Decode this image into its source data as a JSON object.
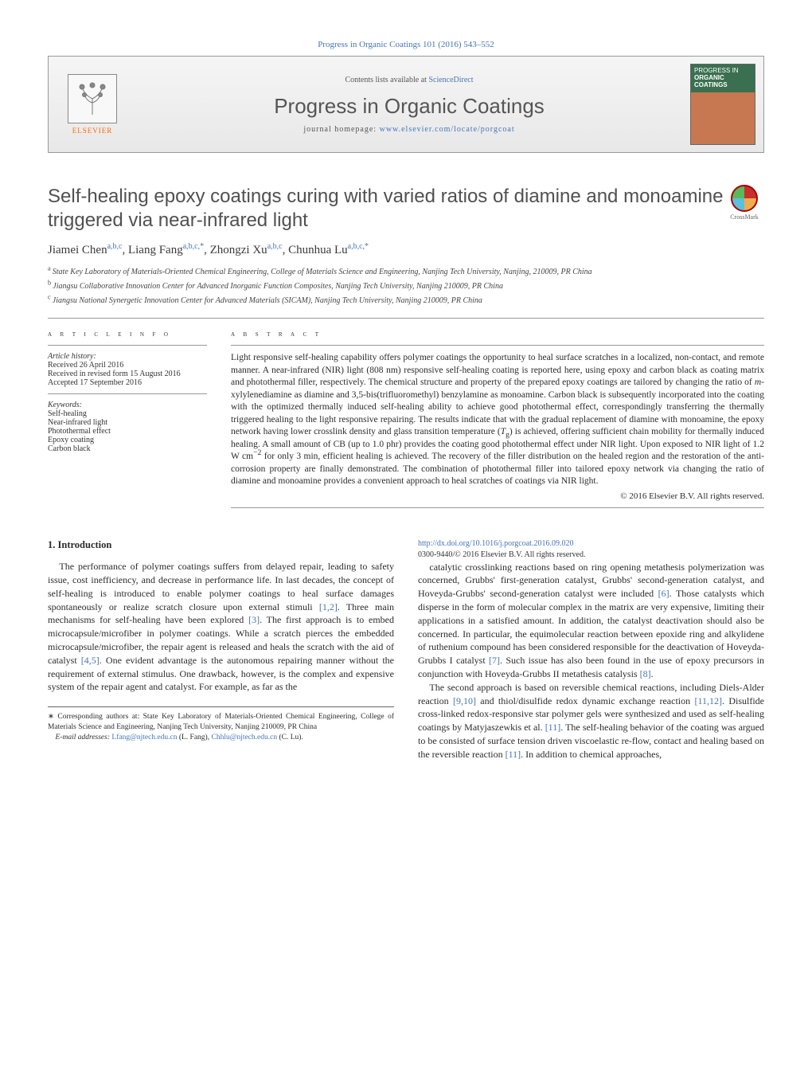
{
  "citation": "Progress in Organic Coatings 101 (2016) 543–552",
  "banner": {
    "contents_prefix": "Contents lists available at ",
    "contents_link": "ScienceDirect",
    "journal_title": "Progress in Organic Coatings",
    "homepage_prefix": "journal homepage: ",
    "homepage_url": "www.elsevier.com/locate/porgcoat",
    "publisher_name": "ELSEVIER",
    "cover_line1": "PROGRESS IN",
    "cover_line2": "ORGANIC",
    "cover_line3": "COATINGS"
  },
  "crossmark_label": "CrossMark",
  "title": "Self-healing epoxy coatings curing with varied ratios of diamine and monoamine triggered via near-infrared light",
  "authors_html": "Jiamei Chen<a,b,c>, Liang Fang<a,b,c,*>, Zhongzi Xu<a,b,c>, Chunhua Lu<a,b,c,*>",
  "authors": [
    {
      "name": "Jiamei Chen",
      "sup": "a,b,c"
    },
    {
      "name": "Liang Fang",
      "sup": "a,b,c,",
      "corr": "*"
    },
    {
      "name": "Zhongzi Xu",
      "sup": "a,b,c"
    },
    {
      "name": "Chunhua Lu",
      "sup": "a,b,c,",
      "corr": "*"
    }
  ],
  "affiliations": [
    {
      "sup": "a",
      "text": "State Key Laboratory of Materials-Oriented Chemical Engineering, College of Materials Science and Engineering, Nanjing Tech University, Nanjing, 210009, PR China"
    },
    {
      "sup": "b",
      "text": "Jiangsu Collaborative Innovation Center for Advanced Inorganic Function Composites, Nanjing Tech University, Nanjing 210009, PR China"
    },
    {
      "sup": "c",
      "text": "Jiangsu National Synergetic Innovation Center for Advanced Materials (SICAM), Nanjing Tech University, Nanjing 210009, PR China"
    }
  ],
  "info": {
    "heading": "a r t i c l e   i n f o",
    "history_label": "Article history:",
    "received": "Received 26 April 2016",
    "revised": "Received in revised form 15 August 2016",
    "accepted": "Accepted 17 September 2016",
    "keywords_label": "Keywords:",
    "keywords": [
      "Self-healing",
      "Near-infrared light",
      "Photothermal effect",
      "Epoxy coating",
      "Carbon black"
    ]
  },
  "abstract": {
    "heading": "a b s t r a c t",
    "text": "Light responsive self-healing capability offers polymer coatings the opportunity to heal surface scratches in a localized, non-contact, and remote manner. A near-infrared (NIR) light (808 nm) responsive self-healing coating is reported here, using epoxy and carbon black as coating matrix and photothermal filler, respectively. The chemical structure and property of the prepared epoxy coatings are tailored by changing the ratio of m-xylylenediamine as diamine and 3,5-bis(trifluoromethyl) benzylamine as monoamine. Carbon black is subsequently incorporated into the coating with the optimized thermally induced self-healing ability to achieve good photothermal effect, correspondingly transferring the thermally triggered healing to the light responsive repairing. The results indicate that with the gradual replacement of diamine with monoamine, the epoxy network having lower crosslink density and glass transition temperature (Tg) is achieved, offering sufficient chain mobility for thermally induced healing. A small amount of CB (up to 1.0 phr) provides the coating good photothermal effect under NIR light. Upon exposed to NIR light of 1.2 W cm⁻² for only 3 min, efficient healing is achieved. The recovery of the filler distribution on the healed region and the restoration of the anti-corrosion property are finally demonstrated. The combination of photothermal filler into tailored epoxy network via changing the ratio of diamine and monoamine provides a convenient approach to heal scratches of coatings via NIR light.",
    "copyright": "© 2016 Elsevier B.V. All rights reserved."
  },
  "intro": {
    "heading": "1.  Introduction",
    "p1": "The performance of polymer coatings suffers from delayed repair, leading to safety issue, cost inefficiency, and decrease in performance life. In last decades, the concept of self-healing is introduced to enable polymer coatings to heal surface damages spontaneously or realize scratch closure upon external stimuli [1,2]. Three main mechanisms for self-healing have been explored [3]. The first approach is to embed microcapsule/microfiber in polymer coatings. While a scratch pierces the embedded microcapsule/microfiber, the repair agent is released and heals the scratch with the aid of catalyst [4,5]. One evident advantage is the autonomous repairing manner without the requirement of external stimulus. One drawback, however, is the complex and expensive system of the repair agent and catalyst. For example, as far as the",
    "p2": "catalytic crosslinking reactions based on ring opening metathesis polymerization was concerned, Grubbs' first-generation catalyst, Grubbs' second-generation catalyst, and Hoveyda-Grubbs' second-generation catalyst were included [6]. Those catalysts which disperse in the form of molecular complex in the matrix are very expensive, limiting their applications in a satisfied amount. In addition, the catalyst deactivation should also be concerned. In particular, the equimolecular reaction between epoxide ring and alkylidene of ruthenium compound has been considered responsible for the deactivation of Hoveyda-Grubbs I catalyst [7]. Such issue has also been found in the use of epoxy precursors in conjunction with Hoveyda-Grubbs II metathesis catalysis [8].",
    "p3": "The second approach is based on reversible chemical reactions, including Diels-Alder reaction [9,10] and thiol/disulfide redox dynamic exchange reaction [11,12]. Disulfide cross-linked redox-responsive star polymer gels were synthesized and used as self-healing coatings by Matyjaszewkis et al. [11]. The self-healing behavior of the coating was argued to be consisted of surface tension driven viscoelastic re-flow, contact and healing based on the reversible reaction [11]. In addition to chemical approaches,"
  },
  "footnote": {
    "corr": "Corresponding authors at: State Key Laboratory of Materials-Oriented Chemical Engineering, College of Materials Science and Engineering, Nanjing Tech University, Nanjing 210009, PR China",
    "email_label": "E-mail addresses: ",
    "email1": "Lfang@njtech.edu.cn",
    "email1_who": " (L. Fang), ",
    "email2": "Chhlu@njtech.edu.cn",
    "email2_who": " (C. Lu)."
  },
  "doi": "http://dx.doi.org/10.1016/j.porgcoat.2016.09.020",
  "issn": "0300-9440/© 2016 Elsevier B.V. All rights reserved.",
  "colors": {
    "link": "#4674b5",
    "text": "#2b2b2b",
    "title": "#505050"
  }
}
